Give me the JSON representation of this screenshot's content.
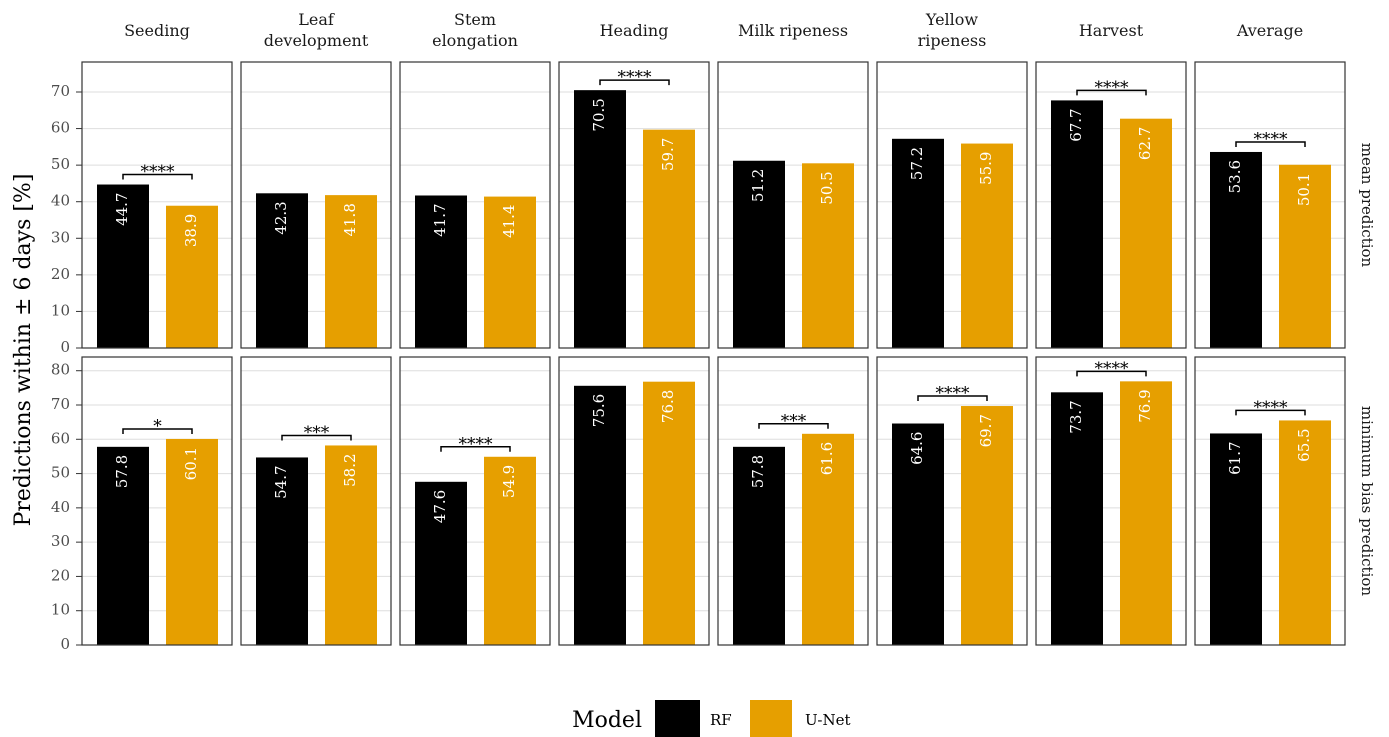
{
  "chart_data": {
    "type": "bar",
    "y_label": "Predictions within ± 6 days [%]",
    "legend_title": "Model",
    "facets": [
      "Seeding",
      "Leaf development",
      "Stem elongation",
      "Heading",
      "Milk ripeness",
      "Yellow ripeness",
      "Harvest",
      "Average"
    ],
    "rows": [
      {
        "label": "mean prediction",
        "ylim": [
          0,
          78.2
        ],
        "yticks": [
          0,
          10,
          20,
          30,
          40,
          50,
          60,
          70
        ]
      },
      {
        "label": "minimum bias prediction",
        "ylim": [
          0,
          84
        ],
        "yticks": [
          0,
          10,
          20,
          30,
          40,
          50,
          60,
          70,
          80
        ]
      }
    ],
    "series": [
      {
        "name": "RF",
        "color": "#000000",
        "values": [
          [
            44.7,
            42.3,
            41.7,
            70.5,
            51.2,
            57.2,
            67.7,
            53.6
          ],
          [
            57.8,
            54.7,
            47.6,
            75.6,
            57.8,
            64.6,
            73.7,
            61.7
          ]
        ]
      },
      {
        "name": "U-Net",
        "color": "#E69F00",
        "values": [
          [
            38.9,
            41.8,
            41.4,
            59.7,
            50.5,
            55.9,
            62.7,
            50.1
          ],
          [
            60.1,
            58.2,
            54.9,
            76.8,
            61.6,
            69.7,
            76.9,
            65.5
          ]
        ]
      }
    ],
    "significance": [
      [
        "****",
        null,
        null,
        "****",
        null,
        null,
        "****",
        "****"
      ],
      [
        "*",
        "***",
        "****",
        null,
        "***",
        "****",
        "****",
        "****"
      ]
    ],
    "grid": true
  }
}
